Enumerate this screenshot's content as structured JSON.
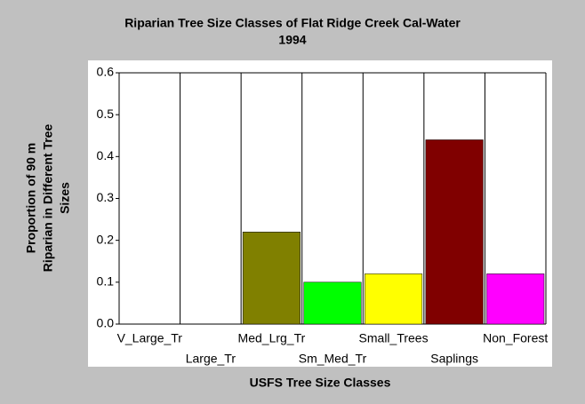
{
  "chart_data": {
    "type": "bar",
    "title": [
      "Riparian Tree Size Classes of Flat Ridge Creek Cal-Water",
      "1994"
    ],
    "x_label": "USFS Tree Size Classes",
    "y_label": [
      "Proportion of 90 m",
      "Riparian in Different Tree",
      "Sizes"
    ],
    "categories": [
      "V_Large_Tr",
      "Large_Tr",
      "Med_Lrg_Tr",
      "Sm_Med_Tr",
      "Small_Trees",
      "Saplings",
      "Non_Forest"
    ],
    "values": [
      0,
      0,
      0.22,
      0.1,
      0.12,
      0.44,
      0.12
    ],
    "colors": [
      null,
      null,
      "#808000",
      "#00ff00",
      "#ffff00",
      "#800000",
      "#ff00ff"
    ],
    "ylim": [
      0,
      0.6
    ],
    "yticks": [
      {
        "value": 0,
        "label": "0.0"
      },
      0.1,
      0.2,
      0.3,
      0.4,
      0.5,
      0.6
    ]
  }
}
